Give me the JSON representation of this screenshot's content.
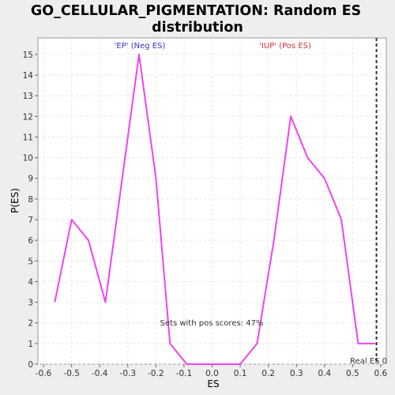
{
  "chart_data": {
    "type": "line",
    "title_lines": [
      "GO_CELLULAR_PIGMENTATION: Random ES",
      "distribution"
    ],
    "xlabel": "ES",
    "ylabel": "P(ES)",
    "xlim": [
      -0.62,
      0.62
    ],
    "ylim": [
      0,
      15.8
    ],
    "x_ticks": [
      -0.6,
      -0.5,
      -0.4,
      -0.3,
      -0.2,
      -0.1,
      0.0,
      0.1,
      0.2,
      0.3,
      0.4,
      0.5,
      0.6
    ],
    "x_tick_labels": [
      "-0.6",
      "-0.5",
      "-0.4",
      "-0.3",
      "-0.2",
      "-0.1",
      "0.0",
      "0.1",
      "0.2",
      "0.3",
      "0.4",
      "0.5",
      "0.6"
    ],
    "y_ticks": [
      0,
      1,
      2,
      3,
      4,
      5,
      6,
      7,
      8,
      9,
      10,
      11,
      12,
      13,
      14,
      15
    ],
    "y_tick_labels": [
      "0",
      "1",
      "2",
      "3",
      "4",
      "5",
      "6",
      "7",
      "8",
      "9",
      "10",
      "11",
      "12",
      "13",
      "14",
      "15"
    ],
    "grid": true,
    "series": [
      {
        "color": "#ee44ee",
        "x": [
          -0.56,
          -0.5,
          -0.44,
          -0.38,
          -0.32,
          -0.26,
          -0.2,
          -0.15,
          -0.09,
          -0.03,
          0.03,
          0.1,
          0.16,
          0.22,
          0.28,
          0.34,
          0.4,
          0.46,
          0.52,
          0.58
        ],
        "y": [
          3,
          7,
          6,
          3,
          9,
          15,
          9,
          1,
          0,
          0,
          0,
          0,
          1,
          6,
          12,
          10,
          9,
          7,
          1,
          1
        ]
      }
    ],
    "real_es": {
      "x": 0.585,
      "label": "Real ES 0"
    },
    "annotations": {
      "neg_label": "'EP' (Neg ES)",
      "pos_label": "'IUP' (Pos ES)",
      "pos_scores_text": "Sets with pos scores: 47%",
      "neg_color": "#3333cc",
      "pos_color": "#cc3333"
    }
  }
}
